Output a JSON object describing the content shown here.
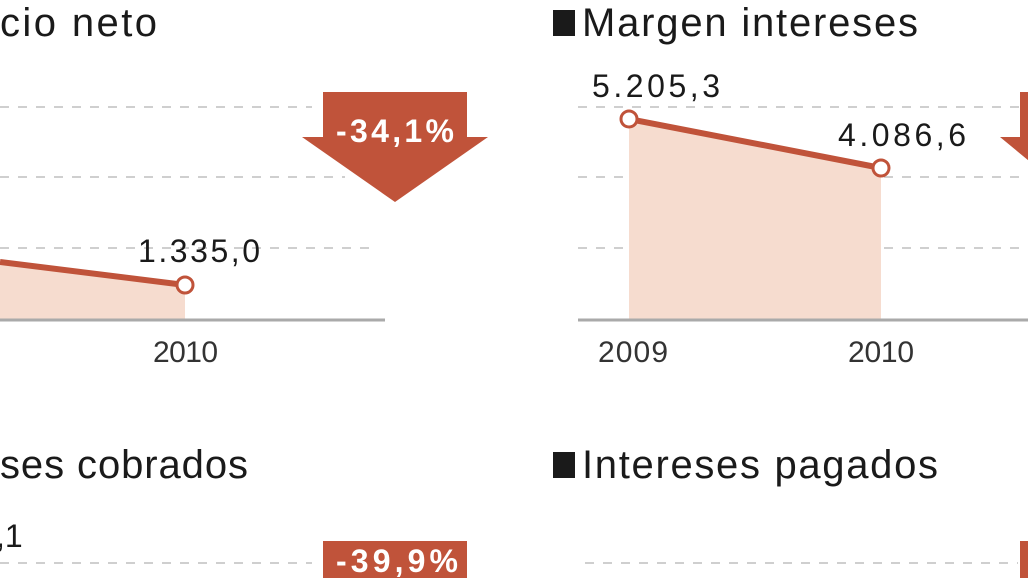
{
  "colors": {
    "accent": "#c0533a",
    "fill": "#f6dccf",
    "grid": "#cfcfcf"
  },
  "chart_data": [
    {
      "type": "area",
      "title": "cio neto",
      "categories": [
        "2010"
      ],
      "values": [
        1335.0
      ],
      "value_labels": [
        "1.335,0"
      ],
      "change_label": "-34,1%",
      "grid": true
    },
    {
      "type": "area",
      "title": "Margen intereses",
      "categories": [
        "2009",
        "2010"
      ],
      "values": [
        5205.3,
        4086.6
      ],
      "value_labels": [
        "5.205,3",
        "4.086,6"
      ],
      "grid": true
    },
    {
      "type": "area",
      "title": "ses cobrados",
      "value_labels": [
        ",1"
      ],
      "change_label": "-39,9%",
      "grid": true
    },
    {
      "type": "area",
      "title": "Intereses pagados",
      "grid": true
    }
  ]
}
